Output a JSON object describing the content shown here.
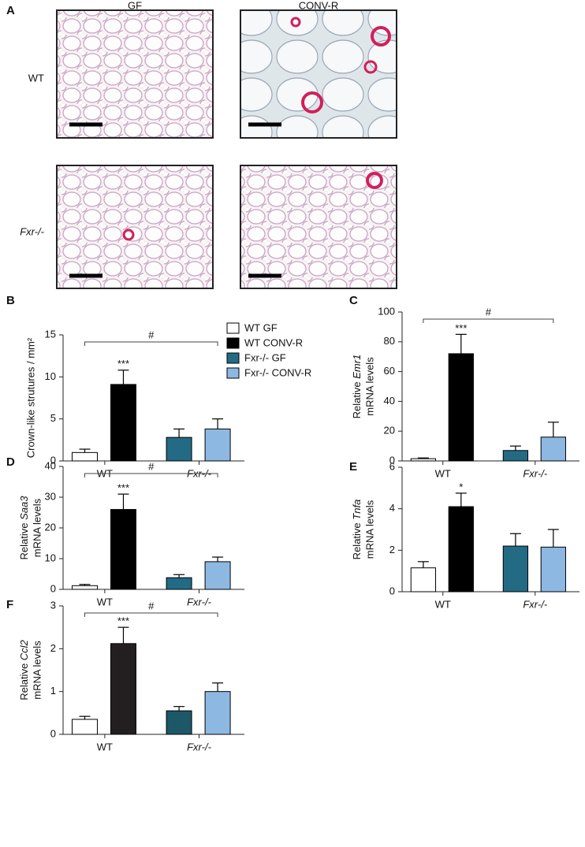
{
  "panel_a": {
    "label": "A",
    "columns": [
      "GF",
      "CONV-R"
    ],
    "rows": [
      "WT",
      "Fxr-/-"
    ]
  },
  "chart_data": [
    {
      "type": "bar",
      "panel": "B",
      "ylabel": [
        "Crown-like strutures / mm²"
      ],
      "categories": [
        "WT",
        "Fxr-/-"
      ],
      "ylim": [
        0,
        15
      ],
      "yticks": [
        0,
        5,
        10,
        15
      ],
      "legend": "upper right",
      "significance": "***",
      "bracket_label": "#",
      "series": [
        {
          "name": "WT GF",
          "color": "#ffffff",
          "values": [
            1.0,
            null
          ],
          "errors": [
            0.4,
            null
          ]
        },
        {
          "name": "WT CONV-R",
          "color": "#000000",
          "values": [
            9.1,
            null
          ],
          "errors": [
            1.7,
            null
          ]
        },
        {
          "name": "Fxr-/- GF",
          "color": "#236b85",
          "values": [
            null,
            2.8
          ],
          "errors": [
            null,
            1.0
          ]
        },
        {
          "name": "Fxr-/- CONV-R",
          "color": "#8db8e2",
          "values": [
            null,
            3.8
          ],
          "errors": [
            null,
            1.2
          ]
        }
      ]
    },
    {
      "type": "bar",
      "panel": "C",
      "ylabel": [
        "Relative",
        "Emr1",
        "mRNA levels"
      ],
      "categories": [
        "WT",
        "Fxr-/-"
      ],
      "ylim": [
        0,
        100
      ],
      "yticks": [
        0,
        20,
        40,
        60,
        80,
        100
      ],
      "significance": "***",
      "bracket_label": "#",
      "series": [
        {
          "name": "WT GF",
          "color": "#ffffff",
          "values": [
            1.5,
            null
          ],
          "errors": [
            0.5,
            null
          ]
        },
        {
          "name": "WT CONV-R",
          "color": "#000000",
          "values": [
            72,
            null
          ],
          "errors": [
            13,
            null
          ]
        },
        {
          "name": "Fxr-/- GF",
          "color": "#236b85",
          "values": [
            null,
            7
          ],
          "errors": [
            null,
            3
          ]
        },
        {
          "name": "Fxr-/- CONV-R",
          "color": "#8db8e2",
          "values": [
            null,
            16
          ],
          "errors": [
            null,
            10
          ]
        }
      ]
    },
    {
      "type": "bar",
      "panel": "D",
      "ylabel": [
        "Relative",
        "Saa3",
        "mRNA levels"
      ],
      "categories": [
        "WT",
        "Fxr-/-"
      ],
      "ylim": [
        0,
        40
      ],
      "yticks": [
        0,
        10,
        20,
        30,
        40
      ],
      "significance": "***",
      "bracket_label": "#",
      "series": [
        {
          "name": "WT GF",
          "color": "#ffffff",
          "values": [
            1.2,
            null
          ],
          "errors": [
            0.4,
            null
          ]
        },
        {
          "name": "WT CONV-R",
          "color": "#000000",
          "values": [
            26,
            null
          ],
          "errors": [
            5,
            null
          ]
        },
        {
          "name": "Fxr-/- GF",
          "color": "#236b85",
          "values": [
            null,
            3.8
          ],
          "errors": [
            null,
            1
          ]
        },
        {
          "name": "Fxr-/- CONV-R",
          "color": "#8db8e2",
          "values": [
            null,
            9
          ],
          "errors": [
            null,
            1.5
          ]
        }
      ]
    },
    {
      "type": "bar",
      "panel": "E",
      "ylabel": [
        "Relative",
        "Tnfa",
        "mRNA levels"
      ],
      "categories": [
        "WT",
        "Fxr-/-"
      ],
      "ylim": [
        0,
        6
      ],
      "yticks": [
        0,
        2,
        4,
        6
      ],
      "significance": "*",
      "series": [
        {
          "name": "WT GF",
          "color": "#ffffff",
          "values": [
            1.15,
            null
          ],
          "errors": [
            0.3,
            null
          ]
        },
        {
          "name": "WT CONV-R",
          "color": "#000000",
          "values": [
            4.1,
            null
          ],
          "errors": [
            0.65,
            null
          ]
        },
        {
          "name": "Fxr-/- GF",
          "color": "#236b85",
          "values": [
            null,
            2.2
          ],
          "errors": [
            null,
            0.6
          ]
        },
        {
          "name": "Fxr-/- CONV-R",
          "color": "#8db8e2",
          "values": [
            null,
            2.15
          ],
          "errors": [
            null,
            0.85
          ]
        }
      ]
    },
    {
      "type": "bar",
      "panel": "F",
      "ylabel": [
        "Relative",
        "Ccl2",
        "mRNA levels"
      ],
      "categories": [
        "WT",
        "Fxr-/-"
      ],
      "ylim": [
        0,
        3
      ],
      "yticks": [
        0,
        1,
        2,
        3
      ],
      "significance": "***",
      "bracket_label": "#",
      "series": [
        {
          "name": "WT GF",
          "color": "#ffffff",
          "values": [
            0.35,
            null
          ],
          "errors": [
            0.07,
            null
          ]
        },
        {
          "name": "WT CONV-R",
          "color": "#231f20",
          "values": [
            2.12,
            null
          ],
          "errors": [
            0.38,
            null
          ]
        },
        {
          "name": "Fxr-/- GF",
          "color": "#1d5868",
          "values": [
            null,
            0.55
          ],
          "errors": [
            null,
            0.1
          ]
        },
        {
          "name": "Fxr-/- CONV-R",
          "color": "#8db8e2",
          "values": [
            null,
            1.0
          ],
          "errors": [
            null,
            0.2
          ]
        }
      ]
    }
  ]
}
